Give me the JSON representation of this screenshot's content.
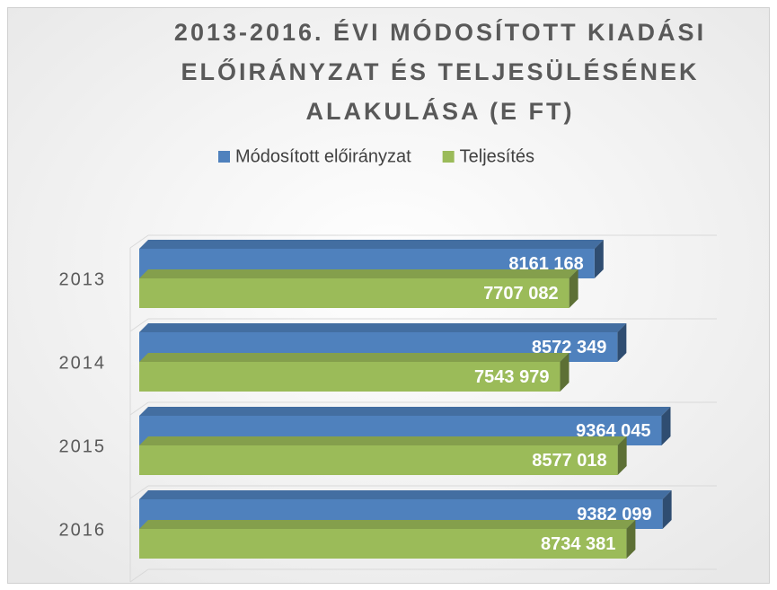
{
  "chart_data": {
    "type": "bar3d-horizontal",
    "title": [
      "2013-2016. ÉVI MÓDOSÍTOTT KIADÁSI",
      "ELŐIRÁNYZAT ÉS TELJESÜLÉSÉNEK",
      "ALAKULÁSA (E FT)"
    ],
    "categories": [
      "2013",
      "2014",
      "2015",
      "2016"
    ],
    "series": [
      {
        "name": "Módosított előirányzat",
        "color": "#4f81bd",
        "values": [
          8161168,
          8572349,
          9364045,
          9382099
        ],
        "value_labels": [
          "8161 168",
          "8572 349",
          "9364 045",
          "9382 099"
        ]
      },
      {
        "name": "Teljesítés",
        "color": "#9bbb59",
        "values": [
          7707082,
          7543979,
          8577018,
          8734381
        ],
        "value_labels": [
          "7707 082",
          "7543 979",
          "8577 018",
          "8734 381"
        ]
      }
    ],
    "xlim": [
      0,
      10000000
    ],
    "legend": "top"
  }
}
